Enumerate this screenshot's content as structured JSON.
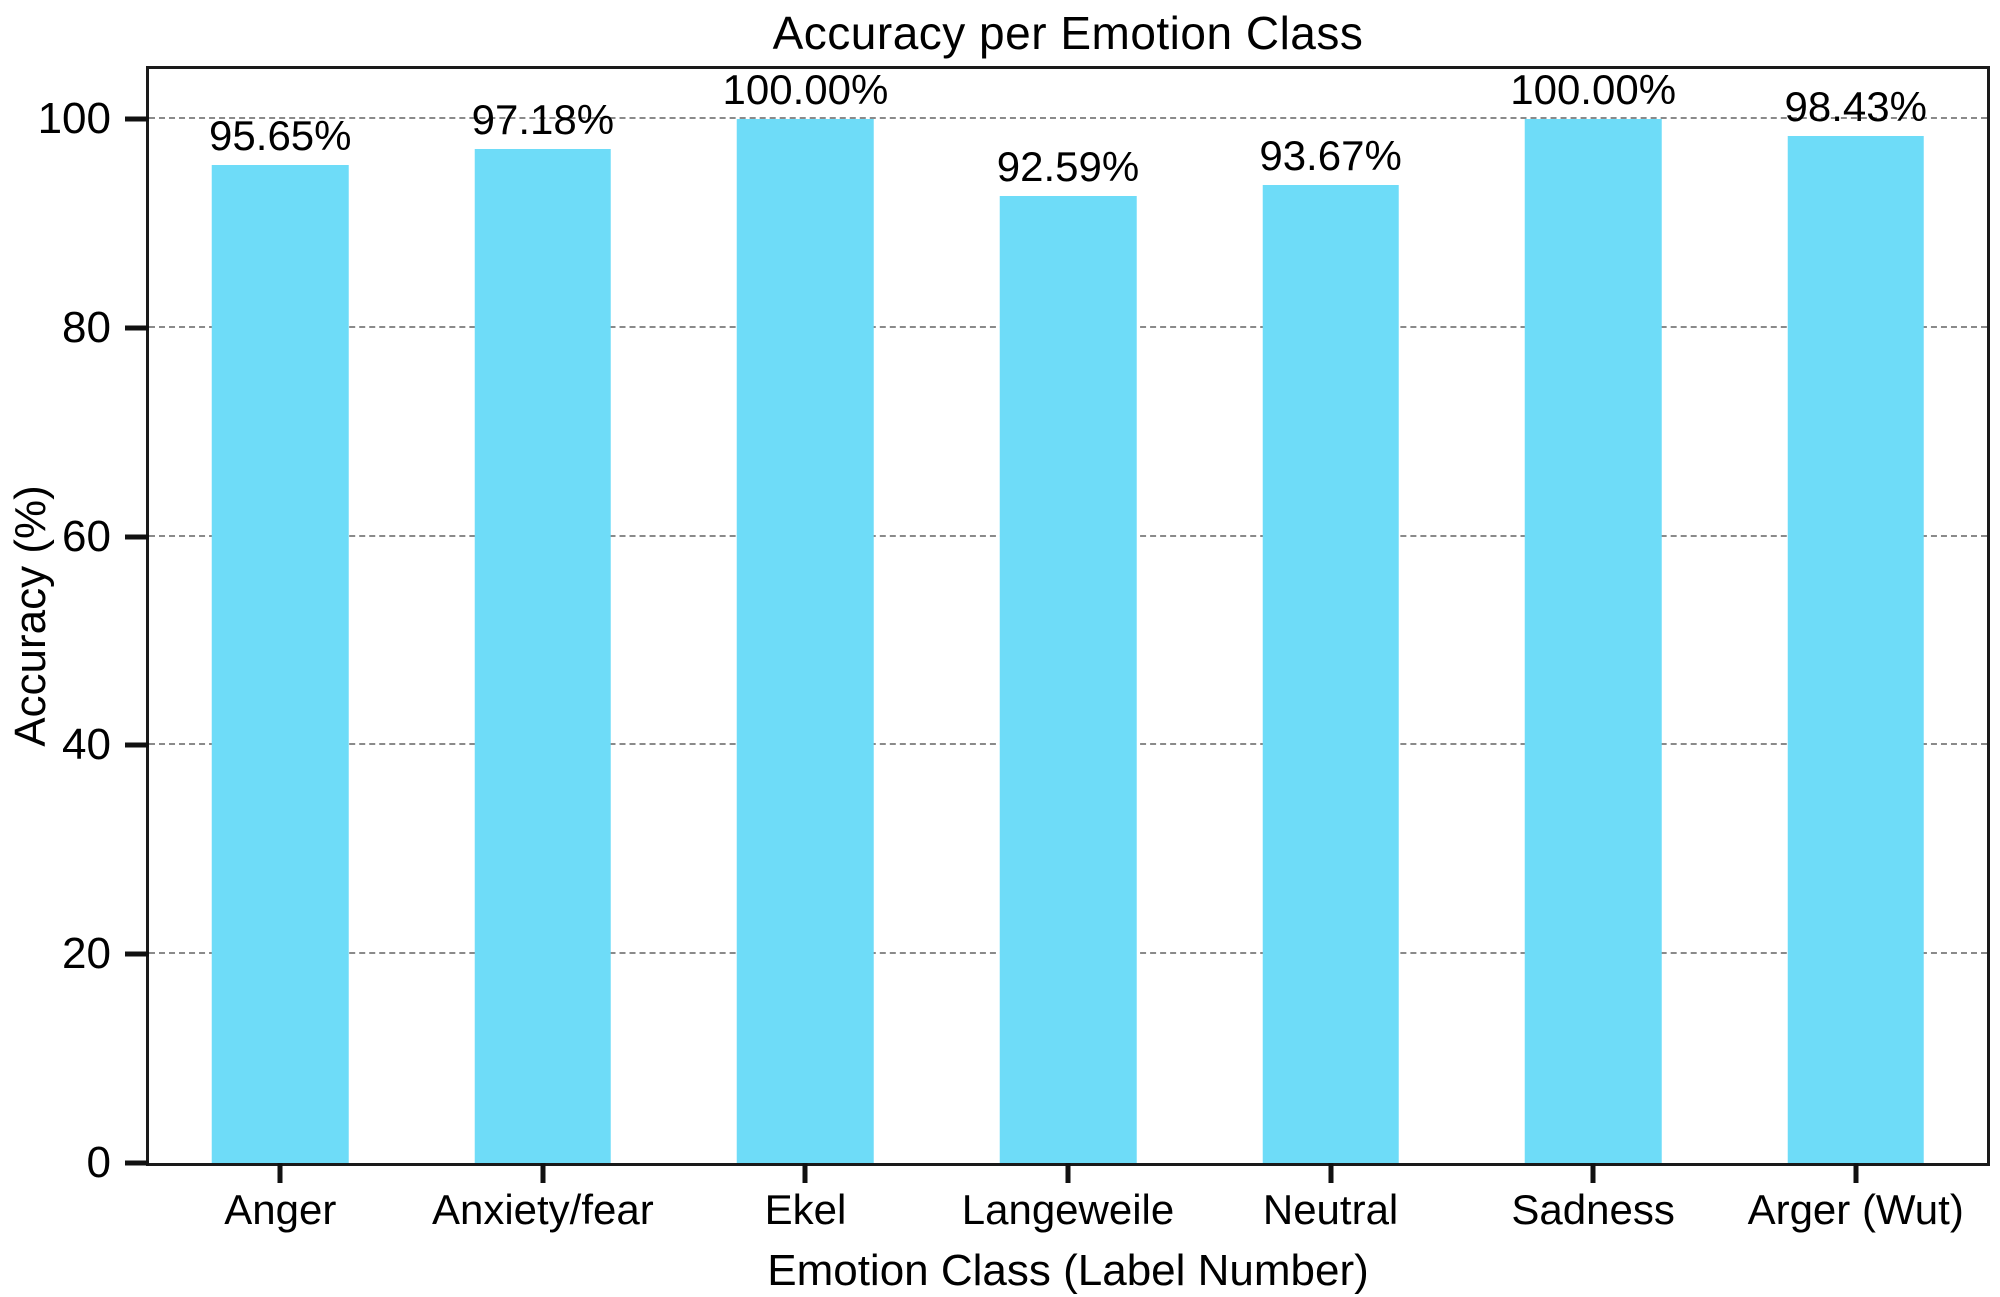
{
  "chart_data": {
    "type": "bar",
    "title": "Accuracy per Emotion Class",
    "xlabel": "Emotion Class (Label Number)",
    "ylabel": "Accuracy (%)",
    "categories": [
      "Anger",
      "Anxiety/fear",
      "Ekel",
      "Langeweile",
      "Neutral",
      "Sadness",
      "Arger (Wut)"
    ],
    "values": [
      95.65,
      97.18,
      100.0,
      92.59,
      93.67,
      100.0,
      98.43
    ],
    "value_labels": [
      "95.65%",
      "97.18%",
      "100.00%",
      "92.59%",
      "93.67%",
      "100.00%",
      "98.43%"
    ],
    "yticks": [
      0,
      20,
      40,
      60,
      80,
      100
    ],
    "ylim": [
      0,
      104.8
    ],
    "grid": true,
    "grid_style": "dashed",
    "legend_position": "none",
    "bar_width_fraction": 0.52,
    "colors": {
      "bar_fill": "#6edcf8",
      "spine": "#1a1a1a",
      "grid": "#8a8a8a",
      "text": "#000000",
      "background": "#ffffff"
    }
  }
}
